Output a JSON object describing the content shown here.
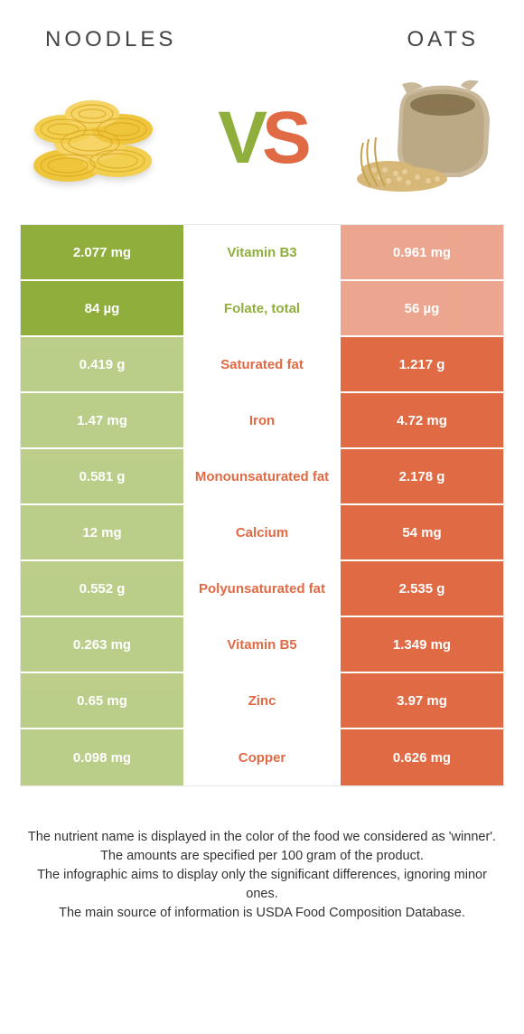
{
  "header": {
    "left_title": "NOODLES",
    "right_title": "OATS"
  },
  "vs": {
    "v": "V",
    "s": "S"
  },
  "colors": {
    "green": "#8fae3b",
    "orange": "#e06a44",
    "row_border": "#ffffff",
    "table_border": "#e6e6e6"
  },
  "rows": [
    {
      "left": "2.077 mg",
      "label": "Vitamin B3",
      "right": "0.961 mg",
      "winner": "left"
    },
    {
      "left": "84 µg",
      "label": "Folate, total",
      "right": "56 µg",
      "winner": "left"
    },
    {
      "left": "0.419 g",
      "label": "Saturated fat",
      "right": "1.217 g",
      "winner": "right"
    },
    {
      "left": "1.47 mg",
      "label": "Iron",
      "right": "4.72 mg",
      "winner": "right"
    },
    {
      "left": "0.581 g",
      "label": "Monounsaturated fat",
      "right": "2.178 g",
      "winner": "right"
    },
    {
      "left": "12 mg",
      "label": "Calcium",
      "right": "54 mg",
      "winner": "right"
    },
    {
      "left": "0.552 g",
      "label": "Polyunsaturated fat",
      "right": "2.535 g",
      "winner": "right"
    },
    {
      "left": "0.263 mg",
      "label": "Vitamin B5",
      "right": "1.349 mg",
      "winner": "right"
    },
    {
      "left": "0.65 mg",
      "label": "Zinc",
      "right": "3.97 mg",
      "winner": "right"
    },
    {
      "left": "0.098 mg",
      "label": "Copper",
      "right": "0.626 mg",
      "winner": "right"
    }
  ],
  "footer": {
    "line1": "The nutrient name is displayed in the color of the food we considered as 'winner'.",
    "line2": "The amounts are specified per 100 gram of the product.",
    "line3": "The infographic aims to display only the significant differences, ignoring minor ones.",
    "line4": "The main source of information is USDA Food Composition Database."
  }
}
